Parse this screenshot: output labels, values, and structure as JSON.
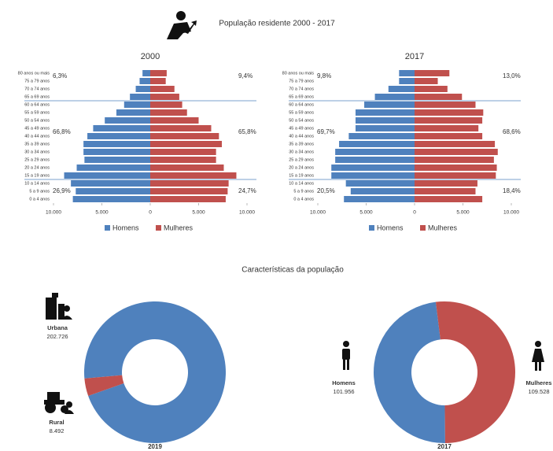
{
  "title": "População residente 2000 - 2017",
  "section_title": "Características da população",
  "chart_data": [
    {
      "type": "pyramid",
      "title": "2000",
      "categories": [
        "0 a 4 anos",
        "5 a 9 anos",
        "10 a 14 anos",
        "15 a 19 anos",
        "20 a 24 anos",
        "25 a 29 anos",
        "30 a 34 anos",
        "35 a 39 anos",
        "40 a 44 anos",
        "45 a 49 anos",
        "50 a 54 anos",
        "55 a 59 anos",
        "60 a 64 anos",
        "65 a 69 anos",
        "70 a 74 anos",
        "75 a 79 anos",
        "80 anos ou mais"
      ],
      "series": [
        {
          "name": "Homens",
          "color": "#4f81bd",
          "values": [
            8000,
            7700,
            8200,
            8900,
            7600,
            6800,
            6900,
            6900,
            6500,
            5900,
            4700,
            3500,
            2700,
            2100,
            1500,
            1100,
            800
          ]
        },
        {
          "name": "Mulheres",
          "color": "#c0504d",
          "values": [
            7800,
            8000,
            8100,
            8900,
            7600,
            6800,
            6800,
            7400,
            7100,
            6300,
            5000,
            3800,
            3300,
            3000,
            2500,
            1600,
            1700
          ]
        }
      ],
      "shares": {
        "men": [
          "6,3%",
          "66,8%",
          "26,9%"
        ],
        "women": [
          "9,4%",
          "65,8%",
          "24,7%"
        ]
      },
      "xlim": [
        -10000,
        10000
      ],
      "xticks": [
        {
          "value": -10000,
          "label": "10.000"
        },
        {
          "value": -5000,
          "label": "5.000"
        },
        0,
        {
          "value": 5000,
          "label": "5.000"
        },
        {
          "value": 10000,
          "label": "10.000"
        }
      ]
    },
    {
      "type": "pyramid",
      "title": "2017",
      "categories": [
        "0 a 4 anos",
        "5 a 9 anos",
        "10 a 14 anos",
        "15 a 19 anos",
        "20 a 24 anos",
        "25 a 29 anos",
        "30 a 34 anos",
        "35 a 39 anos",
        "40 a 44 anos",
        "45 a 49 anos",
        "50 a 54 anos",
        "55 a 59 anos",
        "60 a 64 anos",
        "65 a 69 anos",
        "70 a 74 anos",
        "75 a 79 anos",
        "80 anos ou mais"
      ],
      "series": [
        {
          "name": "Homens",
          "color": "#4f81bd",
          "values": [
            7300,
            6600,
            7100,
            8600,
            8600,
            8200,
            8200,
            7800,
            6800,
            6100,
            6100,
            6100,
            5200,
            4100,
            2700,
            1600,
            1600
          ]
        },
        {
          "name": "Mulheres",
          "color": "#c0504d",
          "values": [
            7000,
            6300,
            6500,
            8400,
            8500,
            8200,
            8600,
            8300,
            7000,
            6600,
            7000,
            7100,
            6300,
            4900,
            3400,
            2400,
            3600
          ]
        }
      ],
      "shares": {
        "men": [
          "9,8%",
          "69,7%",
          "20,5%"
        ],
        "women": [
          "13,0%",
          "68,6%",
          "18,4%"
        ]
      },
      "xlim": [
        -10000,
        10000
      ],
      "xticks": [
        {
          "value": -10000,
          "label": "10.000"
        },
        {
          "value": -5000,
          "label": "5.000"
        },
        0,
        {
          "value": 5000,
          "label": "5.000"
        },
        {
          "value": 10000,
          "label": "10.000"
        }
      ]
    },
    {
      "type": "donut",
      "title": "2019",
      "categories": [
        "Urbana",
        "Rural"
      ],
      "values": [
        202726,
        8492
      ],
      "value_labels": [
        "202.726",
        "8.492"
      ],
      "colors": [
        "#4f81bd",
        "#c0504d"
      ]
    },
    {
      "type": "donut",
      "title": "2017",
      "categories": [
        "Homens",
        "Mulheres"
      ],
      "values": [
        101956,
        109528
      ],
      "value_labels": [
        "101.956",
        "109.528"
      ],
      "colors": [
        "#4f81bd",
        "#c0504d"
      ]
    }
  ]
}
